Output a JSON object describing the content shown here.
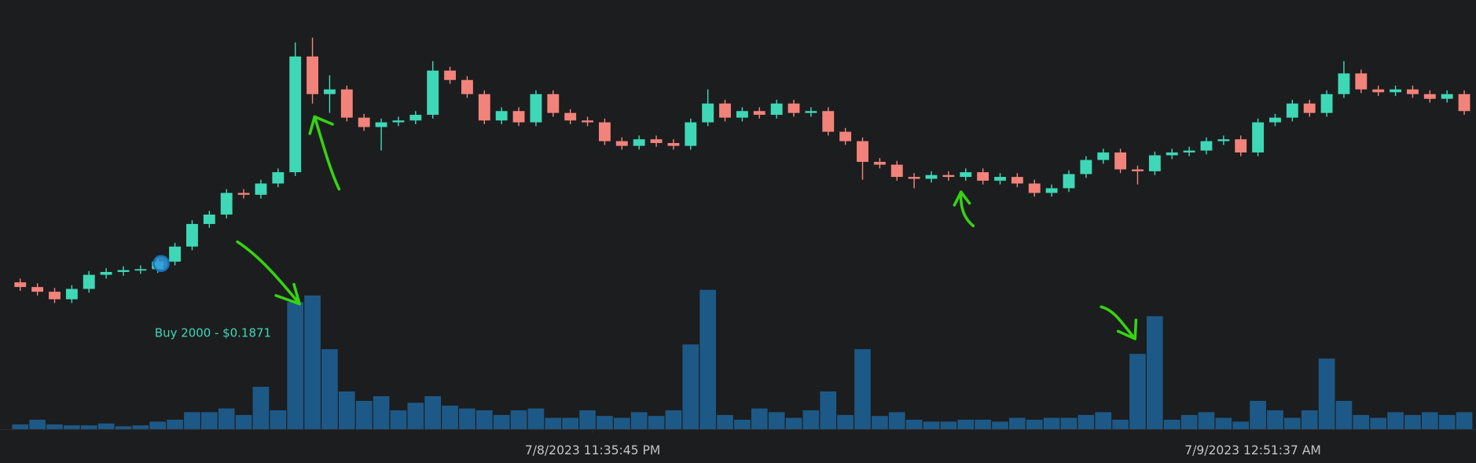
{
  "chart_data": {
    "type": "candlestick",
    "up_color": "#3ed8b6",
    "down_color": "#f2837a",
    "open": [
      0.1851,
      0.1846,
      0.1841,
      0.1833,
      0.1844,
      0.1859,
      0.1862,
      0.1864,
      0.1865,
      0.1873,
      0.1889,
      0.1913,
      0.1923,
      0.1946,
      0.1944,
      0.1956,
      0.1968,
      0.2091,
      0.2051,
      0.2056,
      0.2026,
      0.2016,
      0.2021,
      0.2023,
      0.2029,
      0.2076,
      0.2066,
      0.2051,
      0.2023,
      0.2033,
      0.2021,
      0.2051,
      0.2031,
      0.2023,
      0.2021,
      0.2001,
      0.1996,
      0.2003,
      0.1999,
      0.1996,
      0.2021,
      0.2041,
      0.2026,
      0.2033,
      0.2029,
      0.2041,
      0.2031,
      0.2033,
      0.2011,
      0.2001,
      0.1979,
      0.1976,
      0.1963,
      0.1961,
      0.1965,
      0.1963,
      0.1968,
      0.1959,
      0.1963,
      0.1956,
      0.1946,
      0.1951,
      0.1966,
      0.1981,
      0.1989,
      0.1971,
      0.1969,
      0.1986,
      0.1989,
      0.1991,
      0.2001,
      0.2003,
      0.1989,
      0.2021,
      0.2026,
      0.2041,
      0.2031,
      0.2051,
      0.2073,
      0.2056,
      0.2053,
      0.2056,
      0.2051,
      0.2046,
      0.2051
    ],
    "high": [
      0.1855,
      0.185,
      0.1845,
      0.1848,
      0.1863,
      0.1866,
      0.1868,
      0.1869,
      0.1877,
      0.1893,
      0.1917,
      0.1927,
      0.195,
      0.195,
      0.196,
      0.1972,
      0.2106,
      0.2111,
      0.2071,
      0.206,
      0.203,
      0.2025,
      0.2027,
      0.2033,
      0.2086,
      0.208,
      0.207,
      0.2055,
      0.2037,
      0.2037,
      0.2055,
      0.2055,
      0.2035,
      0.2027,
      0.2025,
      0.2005,
      0.2007,
      0.2007,
      0.2003,
      0.2025,
      0.2056,
      0.2045,
      0.2037,
      0.2037,
      0.2045,
      0.2045,
      0.2037,
      0.2037,
      0.2015,
      0.2005,
      0.1983,
      0.198,
      0.1967,
      0.1969,
      0.1969,
      0.1972,
      0.1972,
      0.1967,
      0.1967,
      0.196,
      0.1955,
      0.197,
      0.1985,
      0.1993,
      0.1993,
      0.1975,
      0.199,
      0.1993,
      0.1995,
      0.2005,
      0.2007,
      0.2007,
      0.2025,
      0.203,
      0.2045,
      0.2045,
      0.2055,
      0.2086,
      0.2077,
      0.206,
      0.206,
      0.206,
      0.2055,
      0.2055,
      0.2055
    ],
    "low": [
      0.1842,
      0.1837,
      0.1829,
      0.1829,
      0.184,
      0.1855,
      0.1858,
      0.186,
      0.1861,
      0.1869,
      0.1885,
      0.1909,
      0.1919,
      0.194,
      0.194,
      0.1952,
      0.1964,
      0.2041,
      0.2031,
      0.2022,
      0.2012,
      0.1991,
      0.2017,
      0.2019,
      0.2025,
      0.2062,
      0.2047,
      0.2019,
      0.2019,
      0.2017,
      0.2017,
      0.2027,
      0.2019,
      0.2017,
      0.1997,
      0.1992,
      0.1992,
      0.1995,
      0.1992,
      0.1992,
      0.2017,
      0.2022,
      0.2022,
      0.2025,
      0.2025,
      0.2027,
      0.2027,
      0.2007,
      0.1997,
      0.196,
      0.1972,
      0.1959,
      0.1951,
      0.1957,
      0.1959,
      0.1959,
      0.1955,
      0.1955,
      0.1952,
      0.1942,
      0.1942,
      0.1947,
      0.1962,
      0.1977,
      0.1967,
      0.1955,
      0.1965,
      0.1982,
      0.1985,
      0.1987,
      0.1997,
      0.1985,
      0.1985,
      0.2017,
      0.2022,
      0.2027,
      0.2027,
      0.2047,
      0.2052,
      0.2049,
      0.2049,
      0.2047,
      0.2042,
      0.2042,
      0.2029
    ],
    "close": [
      0.1846,
      0.1841,
      0.1833,
      0.1844,
      0.1859,
      0.1862,
      0.1864,
      0.1865,
      0.1873,
      0.1889,
      0.1913,
      0.1923,
      0.1946,
      0.1944,
      0.1956,
      0.1968,
      0.2091,
      0.2051,
      0.2056,
      0.2026,
      0.2016,
      0.2021,
      0.2023,
      0.2029,
      0.2076,
      0.2066,
      0.2051,
      0.2023,
      0.2033,
      0.2021,
      0.2051,
      0.2031,
      0.2023,
      0.2021,
      0.2001,
      0.1996,
      0.2003,
      0.1999,
      0.1996,
      0.2021,
      0.2041,
      0.2026,
      0.2033,
      0.2029,
      0.2041,
      0.2031,
      0.2033,
      0.2011,
      0.2001,
      0.1979,
      0.1976,
      0.1963,
      0.1961,
      0.1965,
      0.1963,
      0.1968,
      0.1959,
      0.1963,
      0.1956,
      0.1946,
      0.1951,
      0.1966,
      0.1981,
      0.1989,
      0.1971,
      0.1969,
      0.1986,
      0.1989,
      0.1991,
      0.2001,
      0.2003,
      0.1989,
      0.2021,
      0.2026,
      0.2041,
      0.2031,
      0.2051,
      0.2073,
      0.2056,
      0.2053,
      0.2056,
      0.2051,
      0.2046,
      0.2051,
      0.2033
    ],
    "volume": {
      "color": "#1d5986",
      "axis": "y2",
      "values": [
        5,
        10,
        5,
        4,
        4,
        6,
        3,
        4,
        8,
        10,
        18,
        18,
        22,
        15,
        45,
        20,
        135,
        142,
        85,
        40,
        30,
        35,
        20,
        28,
        35,
        25,
        22,
        20,
        15,
        20,
        22,
        12,
        12,
        20,
        14,
        12,
        18,
        14,
        20,
        90,
        148,
        15,
        10,
        22,
        18,
        12,
        20,
        40,
        15,
        85,
        14,
        18,
        10,
        8,
        8,
        10,
        10,
        8,
        12,
        10,
        12,
        12,
        15,
        18,
        10,
        80,
        120,
        10,
        15,
        18,
        12,
        8,
        30,
        20,
        12,
        20,
        75,
        30,
        15,
        12,
        18,
        15,
        18,
        15,
        18
      ]
    },
    "ylim": [
      0.18,
      0.2151
    ],
    "y2lim": [
      0,
      150
    ],
    "xticks": [
      {
        "value": 33.3,
        "label": "7/8/2023 11:35:45 PM"
      },
      {
        "value": 71.7,
        "label": "7/9/2023 12:51:37 AM"
      }
    ],
    "annotations": [
      {
        "text": "Buy 2000 - $0.1871",
        "index": 8.2,
        "price": 0.1871,
        "color": "#2f9be0",
        "text_color": "#3ed8b6"
      }
    ]
  }
}
